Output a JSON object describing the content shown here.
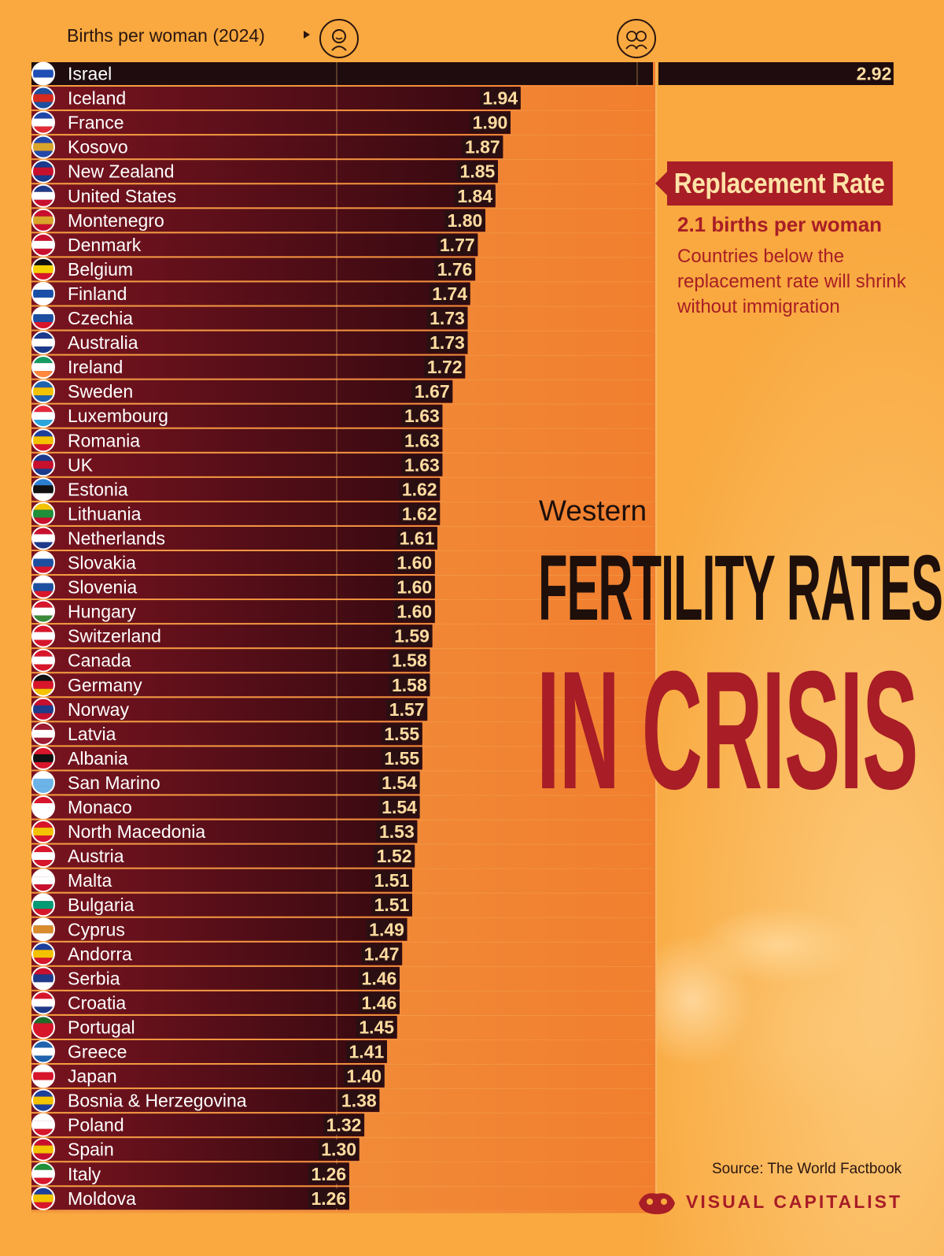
{
  "header": {
    "axis_label": "Births per woman (2024)",
    "icon_one_child": "child-icon",
    "icon_two_children": "two-children-icon"
  },
  "replacement": {
    "label": "Replacement Rate",
    "subtitle": "2.1 births per woman",
    "note": "Countries below the replacement rate will shrink without immigration"
  },
  "title": {
    "line1": "Western",
    "line2": "FERTILITY RATES",
    "line3": "IN CRISIS"
  },
  "footer": {
    "source": "Source: The World Factbook",
    "brand": "VISUAL CAPITALIST"
  },
  "colors": {
    "background": "#f9a93f",
    "bar_dark": "#6b0f1a",
    "bar_highlight": "#1e0c0e",
    "accent_red": "#a81d26",
    "value_box": "#2a0f12",
    "value_text": "#ffdca0"
  },
  "chart_data": {
    "type": "bar",
    "orientation": "horizontal",
    "xlabel": "Births per woman (2024)",
    "xlim": [
      0,
      2.92
    ],
    "reference_line": 2.1,
    "categories": [
      "Israel",
      "Iceland",
      "France",
      "Kosovo",
      "New Zealand",
      "United States",
      "Montenegro",
      "Denmark",
      "Belgium",
      "Finland",
      "Czechia",
      "Australia",
      "Ireland",
      "Sweden",
      "Luxembourg",
      "Romania",
      "UK",
      "Estonia",
      "Lithuania",
      "Netherlands",
      "Slovakia",
      "Slovenia",
      "Hungary",
      "Switzerland",
      "Canada",
      "Germany",
      "Norway",
      "Latvia",
      "Albania",
      "San Marino",
      "Monaco",
      "North Macedonia",
      "Austria",
      "Malta",
      "Bulgaria",
      "Cyprus",
      "Andorra",
      "Serbia",
      "Croatia",
      "Portugal",
      "Greece",
      "Japan",
      "Bosnia & Herzegovina",
      "Poland",
      "Spain",
      "Italy",
      "Moldova"
    ],
    "values": [
      2.92,
      1.94,
      1.9,
      1.87,
      1.85,
      1.84,
      1.8,
      1.77,
      1.76,
      1.74,
      1.73,
      1.73,
      1.72,
      1.67,
      1.63,
      1.63,
      1.63,
      1.62,
      1.62,
      1.61,
      1.6,
      1.6,
      1.6,
      1.59,
      1.58,
      1.58,
      1.57,
      1.55,
      1.55,
      1.54,
      1.54,
      1.53,
      1.52,
      1.51,
      1.51,
      1.49,
      1.47,
      1.46,
      1.46,
      1.45,
      1.41,
      1.4,
      1.38,
      1.32,
      1.3,
      1.26,
      1.26
    ],
    "value_labels": [
      "2.92",
      "1.94",
      "1.90",
      "1.87",
      "1.85",
      "1.84",
      "1.80",
      "1.77",
      "1.76",
      "1.74",
      "1.73",
      "1.73",
      "1.72",
      "1.67",
      "1.63",
      "1.63",
      "1.63",
      "1.62",
      "1.62",
      "1.61",
      "1.60",
      "1.60",
      "1.60",
      "1.59",
      "1.58",
      "1.58",
      "1.57",
      "1.55",
      "1.55",
      "1.54",
      "1.54",
      "1.53",
      "1.52",
      "1.51",
      "1.51",
      "1.49",
      "1.47",
      "1.46",
      "1.46",
      "1.45",
      "1.41",
      "1.40",
      "1.38",
      "1.32",
      "1.30",
      "1.26",
      "1.26"
    ],
    "flag_icons": [
      "flag-israel-icon",
      "flag-iceland-icon",
      "flag-france-icon",
      "flag-kosovo-icon",
      "flag-new-zealand-icon",
      "flag-united-states-icon",
      "flag-montenegro-icon",
      "flag-denmark-icon",
      "flag-belgium-icon",
      "flag-finland-icon",
      "flag-czechia-icon",
      "flag-australia-icon",
      "flag-ireland-icon",
      "flag-sweden-icon",
      "flag-luxembourg-icon",
      "flag-romania-icon",
      "flag-uk-icon",
      "flag-estonia-icon",
      "flag-lithuania-icon",
      "flag-netherlands-icon",
      "flag-slovakia-icon",
      "flag-slovenia-icon",
      "flag-hungary-icon",
      "flag-switzerland-icon",
      "flag-canada-icon",
      "flag-germany-icon",
      "flag-norway-icon",
      "flag-latvia-icon",
      "flag-albania-icon",
      "flag-san-marino-icon",
      "flag-monaco-icon",
      "flag-north-macedonia-icon",
      "flag-austria-icon",
      "flag-malta-icon",
      "flag-bulgaria-icon",
      "flag-cyprus-icon",
      "flag-andorra-icon",
      "flag-serbia-icon",
      "flag-croatia-icon",
      "flag-portugal-icon",
      "flag-greece-icon",
      "flag-japan-icon",
      "flag-bosnia-herzegovina-icon",
      "flag-poland-icon",
      "flag-spain-icon",
      "flag-italy-icon",
      "flag-moldova-icon"
    ],
    "flag_colors": [
      [
        "#ffffff",
        "#1f4fb5",
        "#ffffff"
      ],
      [
        "#1d4fa0",
        "#d52b1e",
        "#1d4fa0"
      ],
      [
        "#1f45a8",
        "#ffffff",
        "#e02a35"
      ],
      [
        "#2448a8",
        "#d9a52b",
        "#2448a8"
      ],
      [
        "#1b3a8c",
        "#c8102e",
        "#1b3a8c"
      ],
      [
        "#1f3a8a",
        "#ffffff",
        "#c8102e"
      ],
      [
        "#c8102e",
        "#d9a52b",
        "#c8102e"
      ],
      [
        "#c8102e",
        "#ffffff",
        "#c8102e"
      ],
      [
        "#111111",
        "#f5d000",
        "#d7162b"
      ],
      [
        "#ffffff",
        "#1a4fa8",
        "#ffffff"
      ],
      [
        "#ffffff",
        "#1d4fa0",
        "#d7162b"
      ],
      [
        "#1b3a8c",
        "#ffffff",
        "#1b3a8c"
      ],
      [
        "#169b62",
        "#ffffff",
        "#ff883e"
      ],
      [
        "#1f62ad",
        "#f3c200",
        "#1f62ad"
      ],
      [
        "#e4263a",
        "#ffffff",
        "#2aa6dd"
      ],
      [
        "#1d3f9c",
        "#f3c200",
        "#d7162b"
      ],
      [
        "#1b3a8c",
        "#c8102e",
        "#1b3a8c"
      ],
      [
        "#2a7fd0",
        "#111111",
        "#ffffff"
      ],
      [
        "#f3c200",
        "#1f8f3a",
        "#c8102e"
      ],
      [
        "#c8102e",
        "#ffffff",
        "#1f3a8a"
      ],
      [
        "#ffffff",
        "#1d4fa0",
        "#d7162b"
      ],
      [
        "#ffffff",
        "#1d4fa0",
        "#d7162b"
      ],
      [
        "#d7162b",
        "#ffffff",
        "#3a8a3a"
      ],
      [
        "#d7162b",
        "#ffffff",
        "#d7162b"
      ],
      [
        "#d7162b",
        "#ffffff",
        "#d7162b"
      ],
      [
        "#111111",
        "#d7162b",
        "#f3c200"
      ],
      [
        "#c8102e",
        "#1f3a8a",
        "#c8102e"
      ],
      [
        "#9e1b32",
        "#ffffff",
        "#9e1b32"
      ],
      [
        "#d7162b",
        "#111111",
        "#d7162b"
      ],
      [
        "#ffffff",
        "#6cb4e8",
        "#6cb4e8"
      ],
      [
        "#d7162b",
        "#ffffff",
        "#ffffff"
      ],
      [
        "#d7162b",
        "#f3c200",
        "#d7162b"
      ],
      [
        "#d7162b",
        "#ffffff",
        "#d7162b"
      ],
      [
        "#ffffff",
        "#ffffff",
        "#c8102e"
      ],
      [
        "#ffffff",
        "#009b74",
        "#d7162b"
      ],
      [
        "#ffffff",
        "#d98c2b",
        "#ffffff"
      ],
      [
        "#1d3f9c",
        "#f3c200",
        "#d7162b"
      ],
      [
        "#c8102e",
        "#1f3a8a",
        "#ffffff"
      ],
      [
        "#d7162b",
        "#ffffff",
        "#1f3a8a"
      ],
      [
        "#1f6b2a",
        "#d7162b",
        "#d7162b"
      ],
      [
        "#1f62ad",
        "#ffffff",
        "#1f62ad"
      ],
      [
        "#ffffff",
        "#d7162b",
        "#ffffff"
      ],
      [
        "#1d3f9c",
        "#f3c200",
        "#1d3f9c"
      ],
      [
        "#ffffff",
        "#ffffff",
        "#d7162b"
      ],
      [
        "#c8102e",
        "#f3c200",
        "#c8102e"
      ],
      [
        "#1f8f3a",
        "#ffffff",
        "#d7162b"
      ],
      [
        "#1d3f9c",
        "#f3c200",
        "#d7162b"
      ]
    ]
  }
}
